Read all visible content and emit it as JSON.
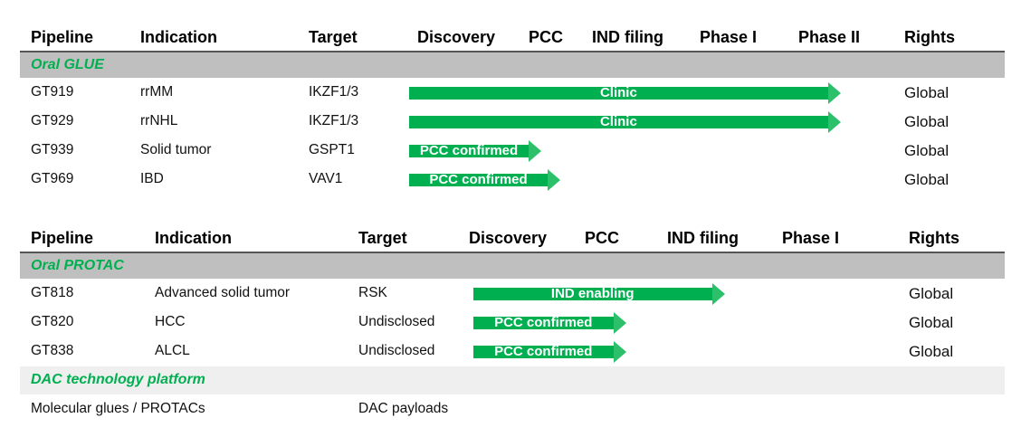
{
  "colors": {
    "accent": "#00b050",
    "band": "#bfbfbf",
    "band_light": "#efefef"
  },
  "glue": {
    "headers": [
      "Pipeline",
      "Indication",
      "Target",
      "Discovery",
      "PCC",
      "IND filing",
      "Phase I",
      "Phase II",
      "Rights"
    ],
    "section": "Oral GLUE",
    "rows": [
      {
        "pipeline": "GT919",
        "indication": "rrMM",
        "target": "IKZF1/3",
        "status": "Clinic",
        "stage_progress": 4.4,
        "rights": "Global"
      },
      {
        "pipeline": "GT929",
        "indication": "rrNHL",
        "target": "IKZF1/3",
        "status": "Clinic",
        "stage_progress": 4.4,
        "rights": "Global"
      },
      {
        "pipeline": "GT939",
        "indication": "Solid tumor",
        "target": "GSPT1",
        "status": "PCC confirmed",
        "stage_progress": 1.2,
        "rights": "Global"
      },
      {
        "pipeline": "GT969",
        "indication": "IBD",
        "target": "VAV1",
        "status": "PCC confirmed",
        "stage_progress": 1.5,
        "rights": "Global"
      }
    ]
  },
  "protac": {
    "headers": [
      "Pipeline",
      "Indication",
      "Target",
      "Discovery",
      "PCC",
      "IND filing",
      "Phase I",
      "Rights"
    ],
    "section": "Oral PROTAC",
    "rows": [
      {
        "pipeline": "GT818",
        "indication": "Advanced solid tumor",
        "target": "RSK",
        "status": "IND enabling",
        "stage_progress": 2.5,
        "rights": "Global"
      },
      {
        "pipeline": "GT820",
        "indication": "HCC",
        "target": "Undisclosed",
        "status": "PCC confirmed",
        "stage_progress": 1.5,
        "rights": "Global"
      },
      {
        "pipeline": "GT838",
        "indication": "ALCL",
        "target": "Undisclosed",
        "status": "PCC confirmed",
        "stage_progress": 1.5,
        "rights": "Global"
      }
    ]
  },
  "dac": {
    "section": "DAC technology platform",
    "left": "Molecular glues / PROTACs",
    "right": "DAC payloads"
  }
}
